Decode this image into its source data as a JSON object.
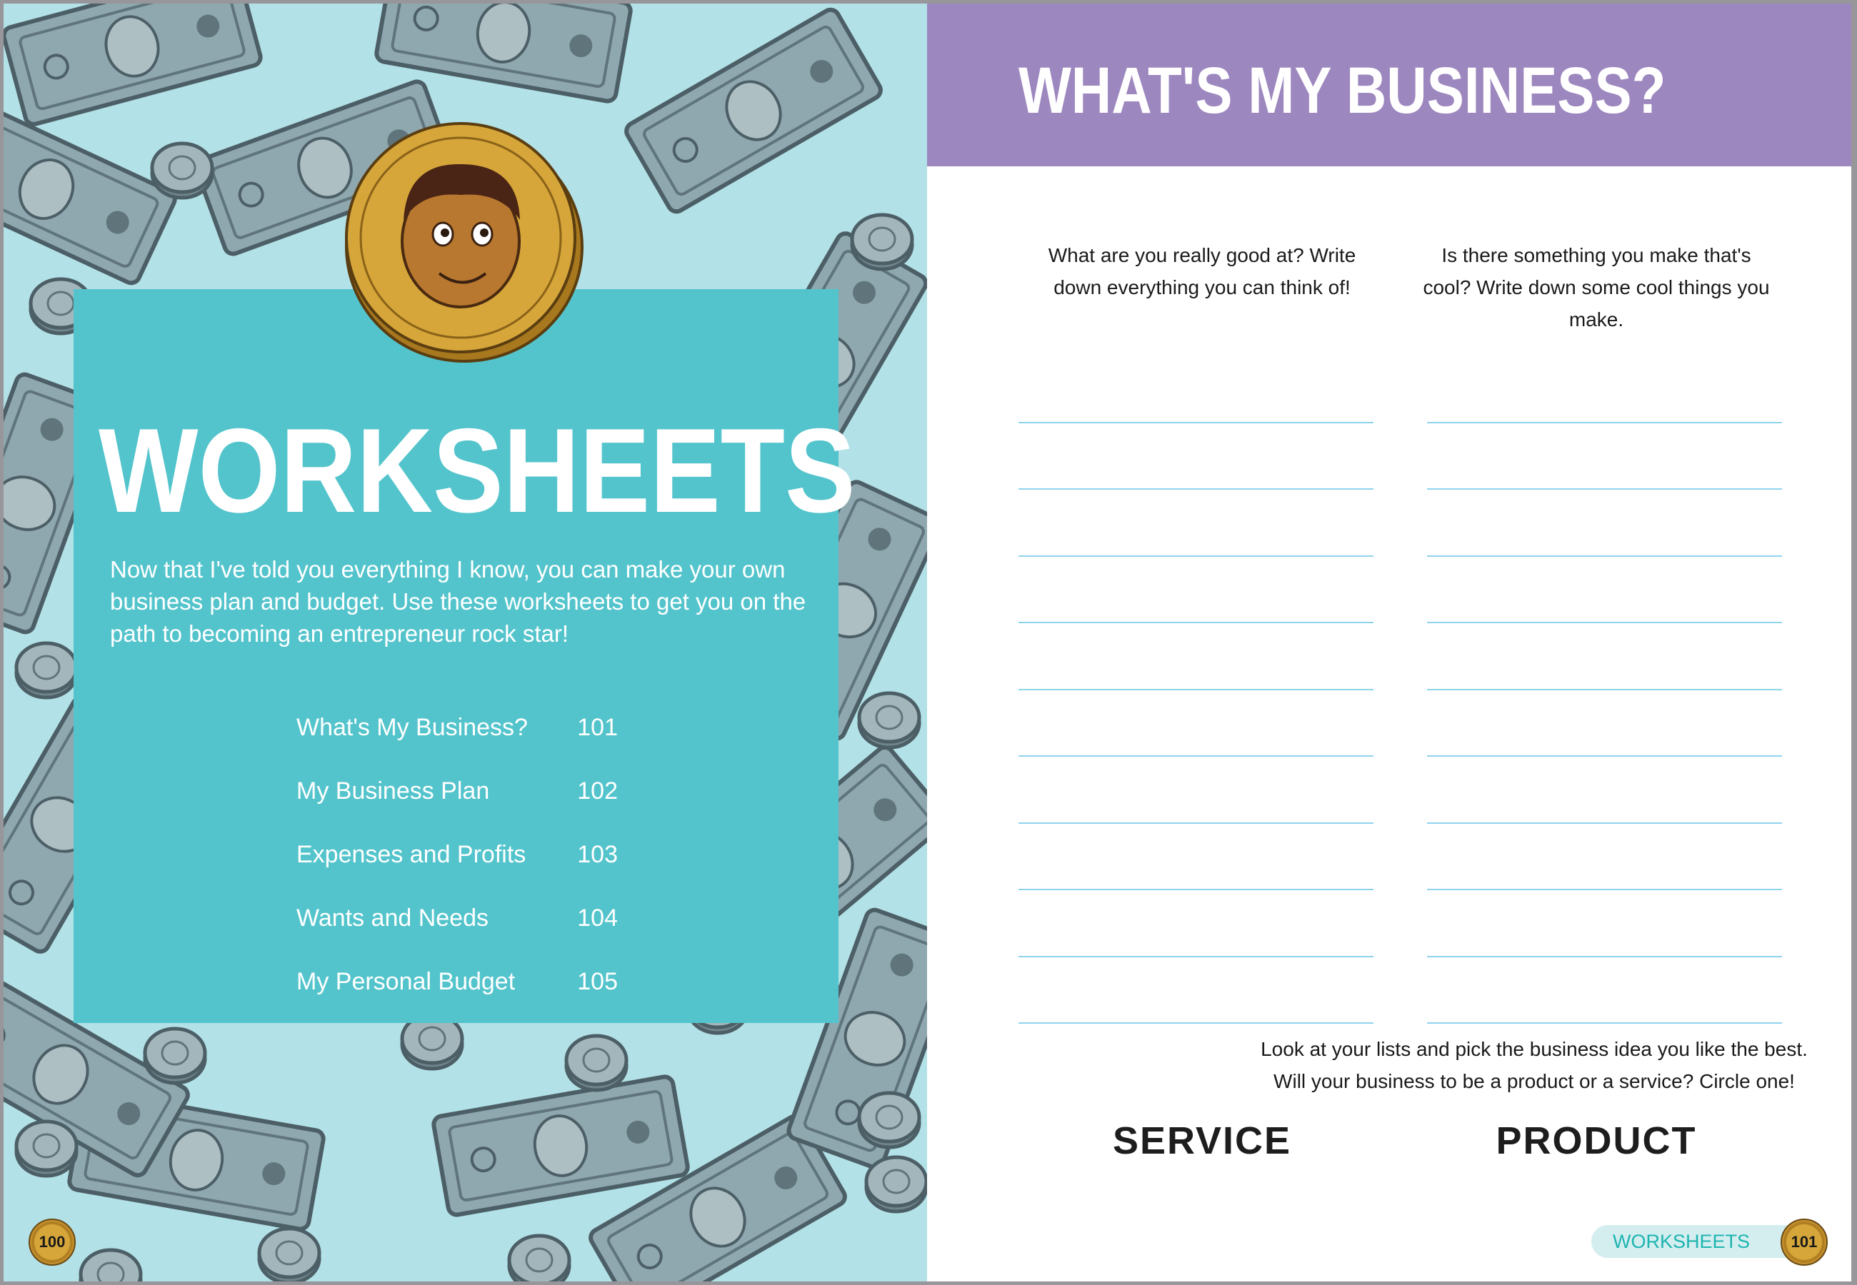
{
  "left_page": {
    "heading": "WORKSHEETS",
    "intro": "Now that I've told you everything I know, you can make your own business plan and budget. Use these worksheets to get you on the path to becoming an entrepreneur rock star!",
    "toc": [
      {
        "label": "What's My Business?",
        "page": "101"
      },
      {
        "label": "My Business Plan",
        "page": "102"
      },
      {
        "label": "Expenses and Profits",
        "page": "103"
      },
      {
        "label": "Wants and Needs",
        "page": "104"
      },
      {
        "label": "My Personal Budget",
        "page": "105"
      }
    ],
    "page_number": "100",
    "colors": {
      "background": "#b2e1e7",
      "panel": "#54c4cc"
    }
  },
  "right_page": {
    "title": "WHAT'S MY BUSINESS?",
    "question_left": "What are you really good at? Write down everything you can think of!",
    "question_right": "Is there something you make that's cool? Write down some cool things you make.",
    "instructions_line1": "Look at your lists and pick the business idea you like the best.",
    "instructions_line2": "Will your business to be a product or a service? Circle one!",
    "choice_service": "SERVICE",
    "choice_product": "PRODUCT",
    "footer_section": "WORKSHEETS",
    "page_number": "101",
    "colors": {
      "header": "#9d87bf",
      "lines": "#8fd3ec"
    }
  }
}
